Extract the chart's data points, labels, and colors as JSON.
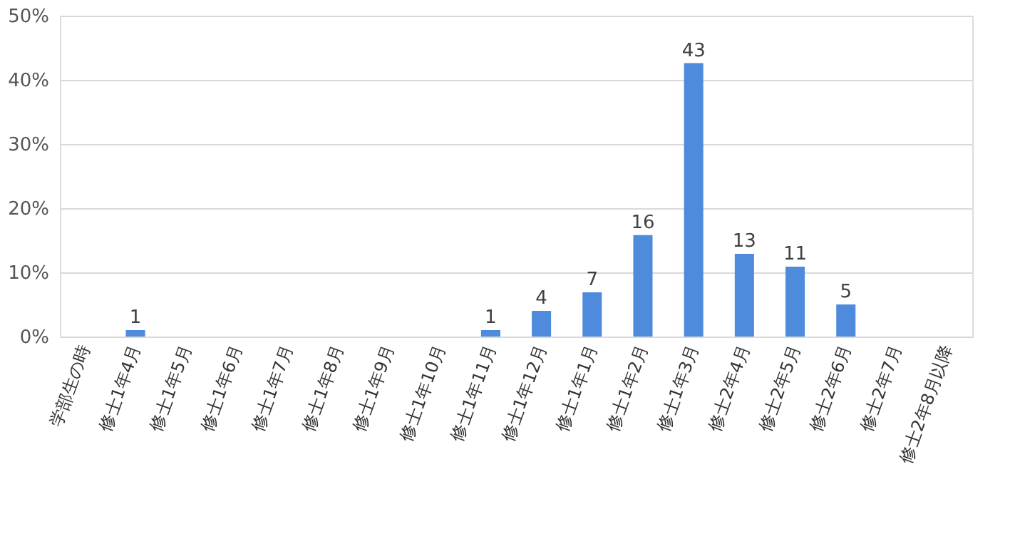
{
  "chart_data": {
    "type": "bar",
    "categories": [
      "学部生の時",
      "修士1年4月",
      "修士1年5月",
      "修士1年6月",
      "修士1年7月",
      "修士1年8月",
      "修士1年9月",
      "修士1年10月",
      "修士1年11月",
      "修士1年12月",
      "修士1年1月",
      "修士1年2月",
      "修士1年3月",
      "修士2年4月",
      "修士2年5月",
      "修士2年6月",
      "修士2年7月",
      "修士2年8月以降"
    ],
    "values": [
      0,
      1.0,
      0,
      0,
      0,
      0,
      0,
      0,
      1.0,
      4.0,
      6.9,
      15.8,
      42.6,
      12.9,
      10.9,
      5.0,
      0,
      0
    ],
    "value_labels": [
      null,
      "1",
      null,
      null,
      null,
      null,
      null,
      null,
      "1",
      "4",
      "7",
      "16",
      "43",
      "13",
      "11",
      "5",
      null,
      null
    ],
    "color": "#4e8bdc",
    "ylim": [
      0,
      50
    ],
    "yticks": [
      {
        "value": 0,
        "label": "0%"
      },
      {
        "value": 10,
        "label": "10%"
      },
      {
        "value": 20,
        "label": "20%"
      },
      {
        "value": 30,
        "label": "30%"
      },
      {
        "value": 40,
        "label": "40%"
      },
      {
        "value": 50,
        "label": "50%"
      }
    ],
    "grid": "y"
  }
}
